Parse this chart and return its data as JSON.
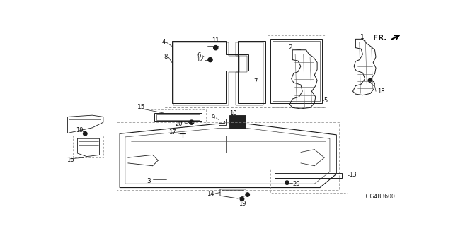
{
  "bg_color": "#ffffff",
  "diagram_code": "TGG4B3600",
  "line_color": "#1a1a1a",
  "label_color": "#111111",
  "dashed_color": "#888888"
}
